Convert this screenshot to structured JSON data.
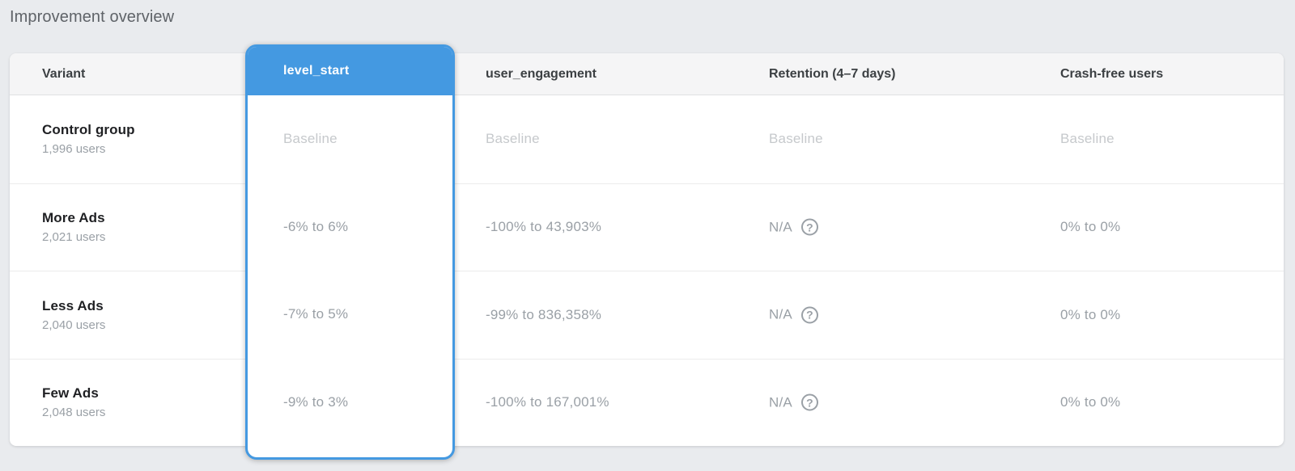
{
  "page": {
    "title": "Improvement overview",
    "accent_color": "#4499e1"
  },
  "table": {
    "columns": [
      {
        "key": "variant",
        "label": "Variant"
      },
      {
        "key": "level_start",
        "label": "level_start",
        "highlighted": true
      },
      {
        "key": "user_engagement",
        "label": "user_engagement"
      },
      {
        "key": "retention",
        "label": "Retention (4–7 days)"
      },
      {
        "key": "crash_free",
        "label": "Crash-free users"
      }
    ],
    "help_icon_glyph": "?",
    "rows": [
      {
        "variant": "Control group",
        "users": "1,996 users",
        "level_start": "Baseline",
        "user_engagement": "Baseline",
        "retention": "Baseline",
        "crash_free": "Baseline"
      },
      {
        "variant": "More Ads",
        "users": "2,021 users",
        "level_start": "-6% to 6%",
        "user_engagement": "-100% to 43,903%",
        "retention": "N/A",
        "crash_free": "0% to 0%"
      },
      {
        "variant": "Less Ads",
        "users": "2,040 users",
        "level_start": "-7% to 5%",
        "user_engagement": "-99% to 836,358%",
        "retention": "N/A",
        "crash_free": "0% to 0%"
      },
      {
        "variant": "Few Ads",
        "users": "2,048 users",
        "level_start": "-9% to 3%",
        "user_engagement": "-100% to 167,001%",
        "retention": "N/A",
        "crash_free": "0% to 0%"
      }
    ]
  }
}
